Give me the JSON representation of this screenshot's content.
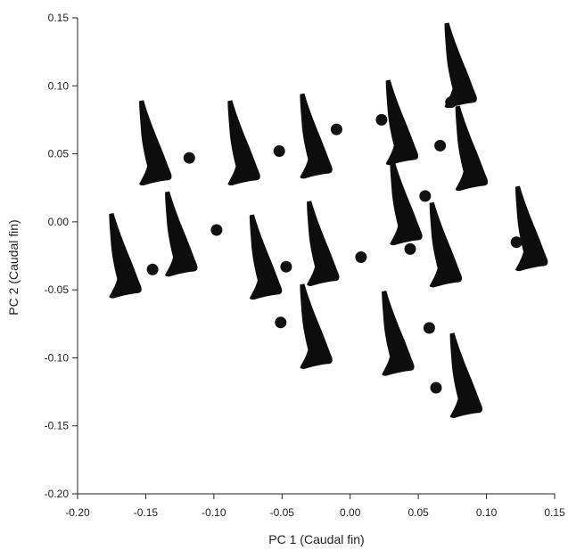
{
  "chart_data": {
    "type": "scatter",
    "xlabel": "PC 1 (Caudal fin)",
    "ylabel": "PC 2 (Caudal fin)",
    "xlim": [
      -0.2,
      0.15
    ],
    "ylim": [
      -0.2,
      0.15
    ],
    "xticks": [
      "-0.20",
      "-0.15",
      "-0.10",
      "-0.05",
      "0.00",
      "0.05",
      "0.10",
      "0.15"
    ],
    "yticks": [
      "-0.20",
      "-0.15",
      "-0.10",
      "-0.05",
      "0.00",
      "0.05",
      "0.10",
      "0.15"
    ],
    "grid": false,
    "marker_color": "#111111",
    "glyph_color": "#0d0d0d",
    "glyph": "caudal-fin-silhouette",
    "points": [
      {
        "x": 0.074,
        "y": 0.088
      },
      {
        "x": -0.118,
        "y": 0.047
      },
      {
        "x": -0.052,
        "y": 0.052
      },
      {
        "x": -0.01,
        "y": 0.068
      },
      {
        "x": 0.023,
        "y": 0.075
      },
      {
        "x": 0.066,
        "y": 0.056
      },
      {
        "x": 0.055,
        "y": 0.019
      },
      {
        "x": -0.098,
        "y": -0.006
      },
      {
        "x": 0.122,
        "y": -0.015
      },
      {
        "x": -0.145,
        "y": -0.035
      },
      {
        "x": -0.047,
        "y": -0.033
      },
      {
        "x": 0.008,
        "y": -0.026
      },
      {
        "x": 0.044,
        "y": -0.02
      },
      {
        "x": -0.051,
        "y": -0.074
      },
      {
        "x": 0.058,
        "y": -0.078
      },
      {
        "x": 0.063,
        "y": -0.122
      }
    ],
    "fins": [
      {
        "x": 0.079,
        "y": 0.115
      },
      {
        "x": -0.145,
        "y": 0.058
      },
      {
        "x": -0.08,
        "y": 0.058
      },
      {
        "x": -0.027,
        "y": 0.063
      },
      {
        "x": 0.036,
        "y": 0.073
      },
      {
        "x": 0.087,
        "y": 0.054
      },
      {
        "x": 0.039,
        "y": 0.014
      },
      {
        "x": -0.126,
        "y": -0.009
      },
      {
        "x": 0.131,
        "y": -0.005
      },
      {
        "x": -0.167,
        "y": -0.025
      },
      {
        "x": -0.064,
        "y": -0.026
      },
      {
        "x": -0.022,
        "y": -0.016
      },
      {
        "x": 0.068,
        "y": -0.017
      },
      {
        "x": -0.027,
        "y": -0.077
      },
      {
        "x": 0.033,
        "y": -0.082
      },
      {
        "x": 0.083,
        "y": -0.113
      }
    ]
  }
}
